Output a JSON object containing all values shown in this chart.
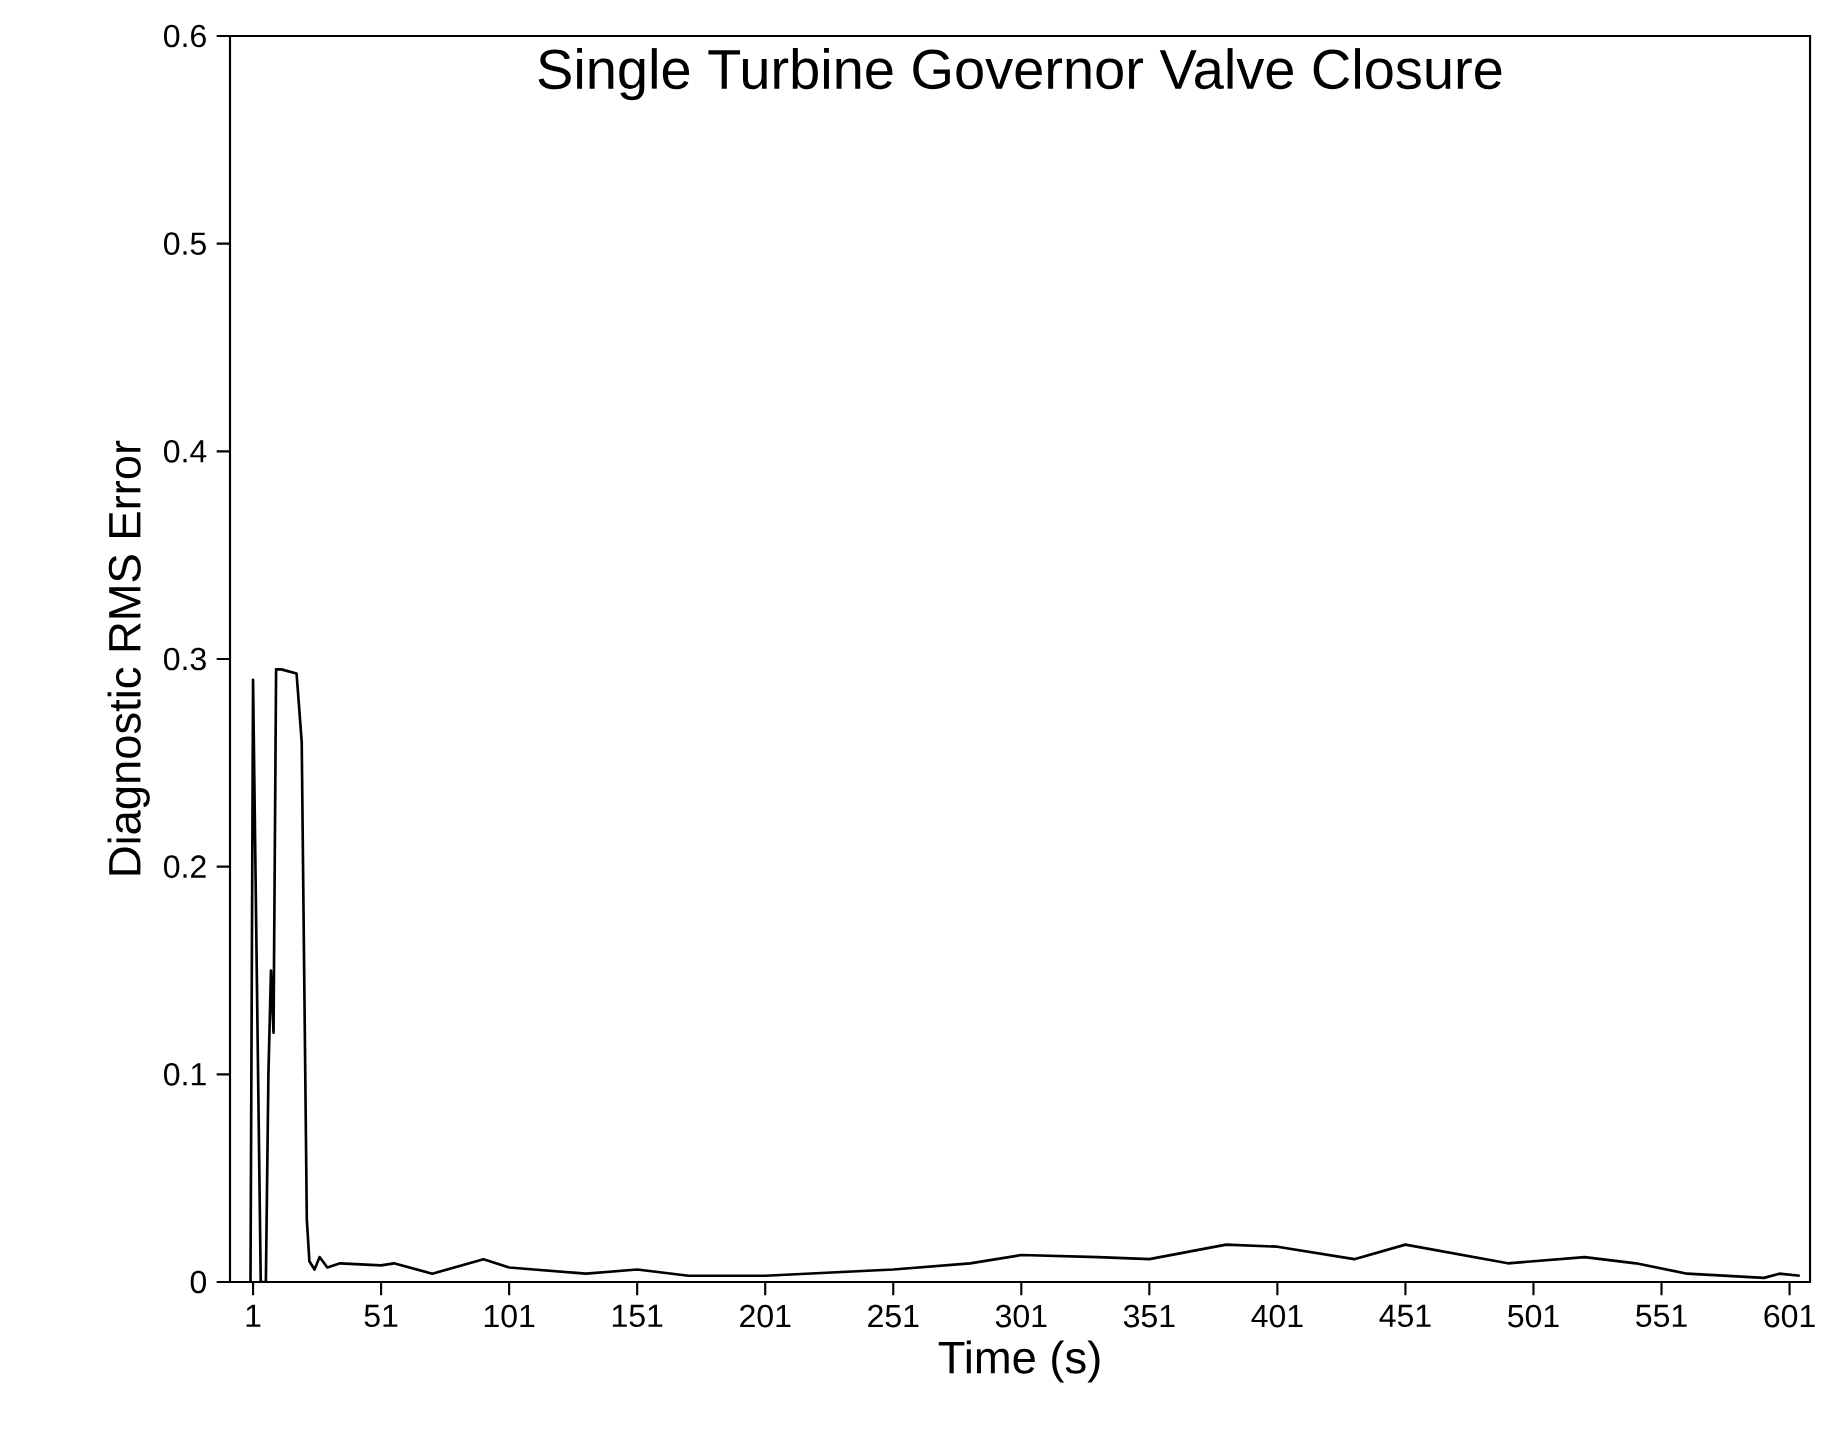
{
  "chart_data": {
    "type": "line",
    "title": "Single Turbine Governor Valve Closure",
    "xlabel": "Time (s)",
    "ylabel": "Diagnostic RMS Error",
    "x": [
      0,
      1,
      4,
      6,
      7,
      8,
      9,
      10,
      12,
      18,
      20,
      22,
      23,
      25,
      27,
      30,
      35,
      51,
      56,
      71,
      91,
      101,
      131,
      151,
      171,
      201,
      251,
      281,
      301,
      331,
      351,
      381,
      401,
      431,
      451,
      491,
      521,
      541,
      561,
      591,
      597,
      605
    ],
    "series": [
      {
        "color": "#000000",
        "values": [
          0,
          0.29,
          0,
          0,
          0.1,
          0.15,
          0.12,
          0.295,
          0.295,
          0.293,
          0.26,
          0.03,
          0.01,
          0.006,
          0.012,
          0.007,
          0.009,
          0.008,
          0.009,
          0.004,
          0.011,
          0.007,
          0.004,
          0.006,
          0.003,
          0.003,
          0.006,
          0.009,
          0.013,
          0.012,
          0.011,
          0.018,
          0.017,
          0.011,
          0.018,
          0.009,
          0.012,
          0.009,
          0.004,
          0.002,
          0.004,
          0.003
        ]
      }
    ],
    "xlim": [
      -8,
      609
    ],
    "ylim": [
      0,
      0.6
    ],
    "xticks": [
      1,
      51,
      101,
      151,
      201,
      251,
      301,
      351,
      401,
      451,
      501,
      551,
      601
    ],
    "yticks": [
      0,
      0.1,
      0.2,
      0.3,
      0.4,
      0.5,
      0.6
    ],
    "marker": "none",
    "line_style": "solid"
  }
}
